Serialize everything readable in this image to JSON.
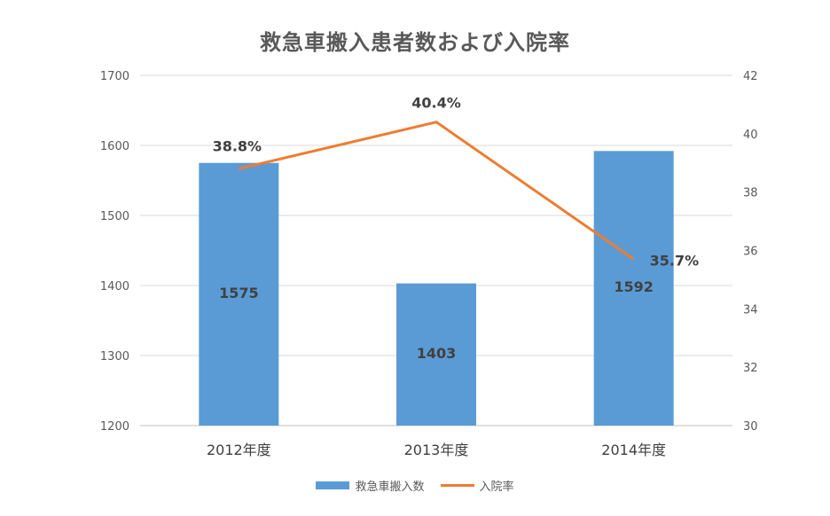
{
  "chart_data": {
    "type": "bar",
    "title": "救急車搬入患者数および入院率",
    "categories": [
      "2012年度",
      "2013年度",
      "2014年度"
    ],
    "series": [
      {
        "name": "救急車搬入数",
        "type": "bar",
        "axis": "left",
        "values": [
          1575,
          1403,
          1592
        ],
        "labels": [
          "1575",
          "1403",
          "1592"
        ],
        "color": "#5B9BD5"
      },
      {
        "name": "入院率",
        "type": "line",
        "axis": "right",
        "values": [
          38.8,
          40.4,
          35.7
        ],
        "labels": [
          "38.8%",
          "40.4%",
          "35.7%"
        ],
        "color": "#ED7D31"
      }
    ],
    "ylim_left": [
      1200,
      1700
    ],
    "yticks_left": [
      1200,
      1300,
      1400,
      1500,
      1600,
      1700
    ],
    "ylim_right": [
      30,
      42
    ],
    "yticks_right": [
      30,
      32,
      34,
      36,
      38,
      40,
      42
    ],
    "grid": true,
    "legend": "bottom"
  }
}
